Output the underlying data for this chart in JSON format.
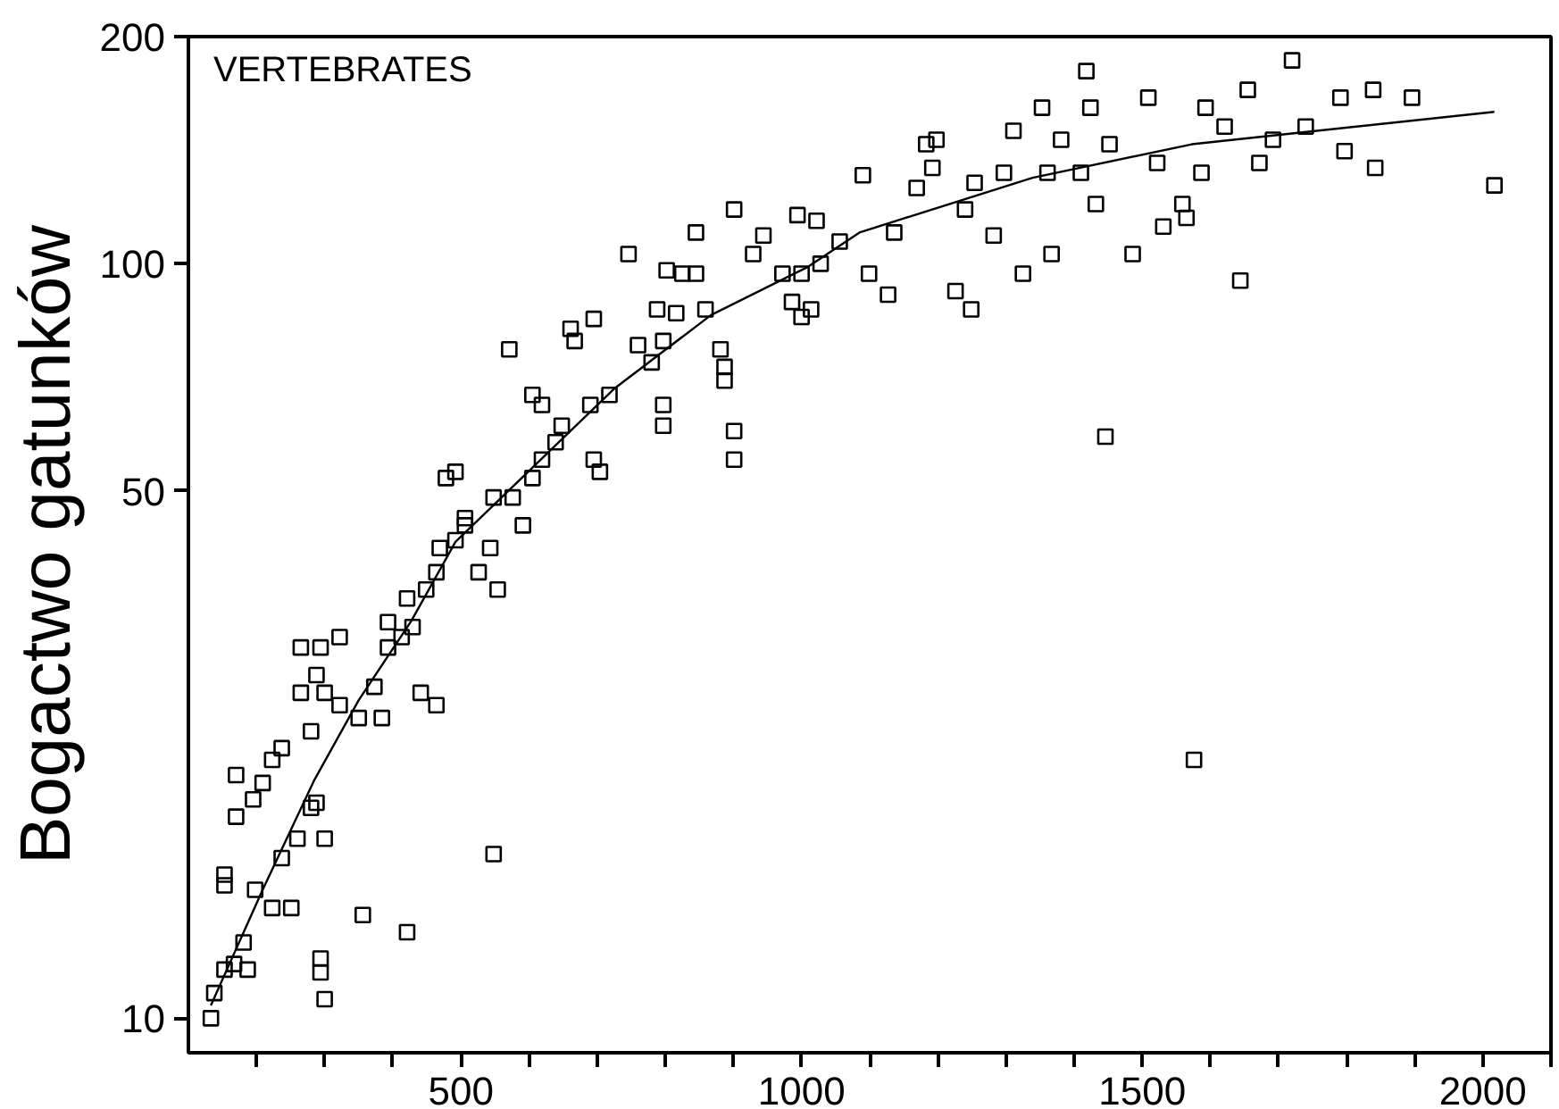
{
  "chart_data": {
    "type": "scatter",
    "ylabel": "Bogactwo gatunków",
    "annotations": [
      "VERTEBRATES"
    ],
    "log": "y",
    "grid": false,
    "xlim": [
      100,
      2100
    ],
    "ylim": [
      9,
      200
    ],
    "xticks": [
      {
        "value": 200,
        "label": null
      },
      {
        "value": 300,
        "label": null
      },
      {
        "value": 400,
        "label": null
      },
      500,
      {
        "value": 600,
        "label": null
      },
      {
        "value": 700,
        "label": null
      },
      {
        "value": 800,
        "label": null
      },
      {
        "value": 900,
        "label": null
      },
      1000,
      {
        "value": 1100,
        "label": null
      },
      {
        "value": 1200,
        "label": null
      },
      {
        "value": 1300,
        "label": null
      },
      {
        "value": 1400,
        "label": null
      },
      1500,
      {
        "value": 1600,
        "label": null
      },
      {
        "value": 1700,
        "label": null
      },
      {
        "value": 1800,
        "label": null
      },
      {
        "value": 1900,
        "label": null
      },
      2000,
      {
        "value": 2100,
        "label": null
      }
    ],
    "yticks": [
      10,
      50,
      100,
      200
    ],
    "series": [
      {
        "marker": "square",
        "color": "#000000",
        "x": [
          133,
          138,
          153,
          167,
          187,
          181,
          153,
          153,
          170,
          170,
          195,
          209,
          223,
          237,
          198,
          223,
          251,
          237,
          260,
          280,
          288,
          300,
          280,
          265,
          288,
          300,
          294,
          322,
          265,
          294,
          294,
          300,
          322,
          350,
          356,
          384,
          373,
          393,
          413,
          429,
          393,
          441,
          464,
          421,
          421,
          449,
          464,
          469,
          492,
          506,
          478,
          492,
          506,
          526,
          543,
          554,
          548,
          571,
          548,
          576,
          591,
          605,
          619,
          639,
          648,
          605,
          619,
          661,
          667,
          690,
          695,
          704,
          718,
          695,
          746,
          780,
          788,
          797,
          797,
          797,
          760,
          802,
          825,
          845,
          845,
          816,
          859,
          881,
          887,
          887,
          901,
          901,
          901,
          929,
          944,
          972,
          986,
          1000,
          1014,
          994,
          1022,
          1028,
          1000,
          1056,
          1090,
          1099,
          1127,
          1136,
          1169,
          1183,
          1192,
          1198,
          1226,
          1249,
          1240,
          1254,
          1282,
          1297,
          1311,
          1325,
          1353,
          1361,
          1367,
          1381,
          1418,
          1424,
          1410,
          1432,
          1446,
          1452,
          1486,
          1509,
          1522,
          1531,
          1559,
          1565,
          1576,
          1587,
          1593,
          1621,
          1644,
          1655,
          1672,
          1692,
          1720,
          1740,
          1791,
          1797,
          1839,
          1842,
          1896,
          2017
        ],
        "values": [
          10,
          10.8,
          11.6,
          11.8,
          11.6,
          12.6,
          15,
          15.5,
          18.5,
          21,
          19.5,
          20.5,
          22,
          22.8,
          14.8,
          14,
          14,
          16.3,
          17.3,
          19,
          19.3,
          17.3,
          24,
          27,
          28.5,
          27,
          31,
          32,
          31,
          12,
          11.5,
          10.6,
          26,
          25,
          13.7,
          25,
          27.5,
          31,
          32,
          33,
          33.5,
          27,
          26,
          13,
          36,
          37,
          39,
          42,
          43,
          45,
          52,
          53,
          46,
          39,
          42,
          37,
          16.5,
          77,
          49,
          49,
          45,
          52,
          55,
          58,
          61,
          67,
          65,
          82,
          79,
          65,
          55,
          53,
          67,
          84.5,
          103,
          74,
          87,
          79,
          65,
          61,
          78,
          98,
          97,
          110,
          97,
          86,
          87,
          77,
          73,
          70,
          60,
          55,
          118,
          103,
          109,
          97,
          89,
          85,
          87,
          116,
          114,
          100,
          97,
          107,
          131,
          97,
          91,
          110,
          126,
          144,
          134,
          146,
          92,
          87,
          118,
          128,
          109,
          132,
          150,
          97,
          161,
          132,
          103,
          146,
          180,
          161,
          132,
          120,
          59,
          144,
          103,
          166,
          136,
          112,
          120,
          115,
          22,
          132,
          161,
          152,
          95,
          170,
          136,
          146,
          186,
          152,
          166,
          141,
          170,
          134,
          166,
          127
        ]
      },
      {
        "type": "line",
        "color": "#000000",
        "line_style": "solid",
        "x": [
          133,
          209,
          285,
          350,
          427,
          492,
          726,
          867,
          1008,
          1085,
          1339,
          1573,
          2017
        ],
        "values": [
          10.4,
          14.8,
          20.7,
          26.4,
          33.6,
          42.8,
          68.4,
          85.5,
          98.9,
          110,
          130,
          144,
          159
        ]
      }
    ]
  }
}
